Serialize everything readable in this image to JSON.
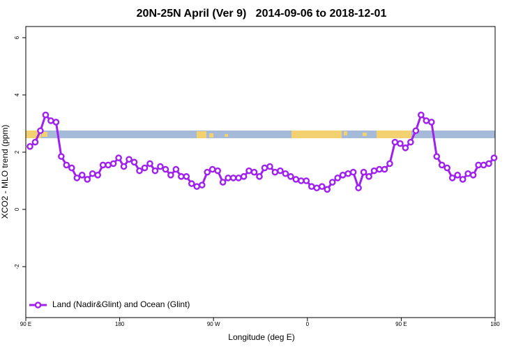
{
  "chart_data": {
    "type": "line",
    "title": "20N-25N April (Ver 9)   2014-09-06 to 2018-12-01",
    "x_label": "Longitude (deg E)",
    "y_label": "XCO2 - MLO trend (ppm)",
    "x": [
      94,
      99,
      104,
      109,
      114,
      119,
      124,
      129,
      134,
      139,
      144,
      149,
      154,
      159,
      164,
      169,
      174,
      179,
      184,
      189,
      194,
      199,
      204,
      209,
      214,
      219,
      224,
      229,
      234,
      239,
      244,
      249,
      254,
      259,
      264,
      269,
      274,
      279,
      284,
      289,
      294,
      299,
      304,
      309,
      314,
      319,
      324,
      329,
      334,
      339,
      344,
      349,
      354,
      359,
      364,
      369,
      374,
      379,
      384,
      389,
      394,
      399,
      404,
      409,
      414,
      419,
      424,
      429,
      434,
      439,
      444,
      449,
      454,
      459,
      464,
      469,
      474,
      479,
      484,
      489,
      494,
      499,
      504,
      509,
      514,
      519,
      524,
      529,
      534,
      539
    ],
    "series": [
      {
        "name": "Land (Nadir&Glint) and Ocean (Glint)",
        "color": "#a020f0",
        "values": [
          2.2,
          2.35,
          2.75,
          3.3,
          3.1,
          3.05,
          1.85,
          1.55,
          1.45,
          1.1,
          1.2,
          1.05,
          1.25,
          1.2,
          1.55,
          1.55,
          1.6,
          1.8,
          1.5,
          1.75,
          1.65,
          1.35,
          1.45,
          1.6,
          1.35,
          1.5,
          1.4,
          1.2,
          1.4,
          1.15,
          1.15,
          0.9,
          0.8,
          0.85,
          1.3,
          1.4,
          1.35,
          0.95,
          1.1,
          1.1,
          1.1,
          1.15,
          1.35,
          1.3,
          1.15,
          1.45,
          1.5,
          1.3,
          1.35,
          1.25,
          1.15,
          1.05,
          1.0,
          1.0,
          0.8,
          0.75,
          0.8,
          0.7,
          0.95,
          1.1,
          1.2,
          1.25,
          1.3,
          0.75,
          1.3,
          1.15,
          1.35,
          1.4,
          1.4,
          1.6,
          2.35,
          2.3,
          2.15,
          2.35,
          2.75,
          3.3,
          3.1,
          3.05,
          1.85,
          1.55,
          1.45,
          1.1,
          1.2,
          1.05,
          1.25,
          1.2,
          1.55,
          1.55,
          1.6,
          1.8
        ]
      }
    ],
    "xlim": [
      90,
      540
    ],
    "xticks": [
      {
        "value": 90,
        "label": "90 E"
      },
      180,
      {
        "value": 270,
        "label": "90 W"
      },
      {
        "value": 360,
        "label": "0"
      },
      {
        "value": 450,
        "label": "90 E"
      },
      {
        "value": 540,
        "label": "180"
      }
    ],
    "ylim": [
      -3.78,
      6.39
    ],
    "yticks": [
      -2,
      0,
      2,
      4,
      6
    ],
    "grid": false,
    "legend": "lower left"
  }
}
